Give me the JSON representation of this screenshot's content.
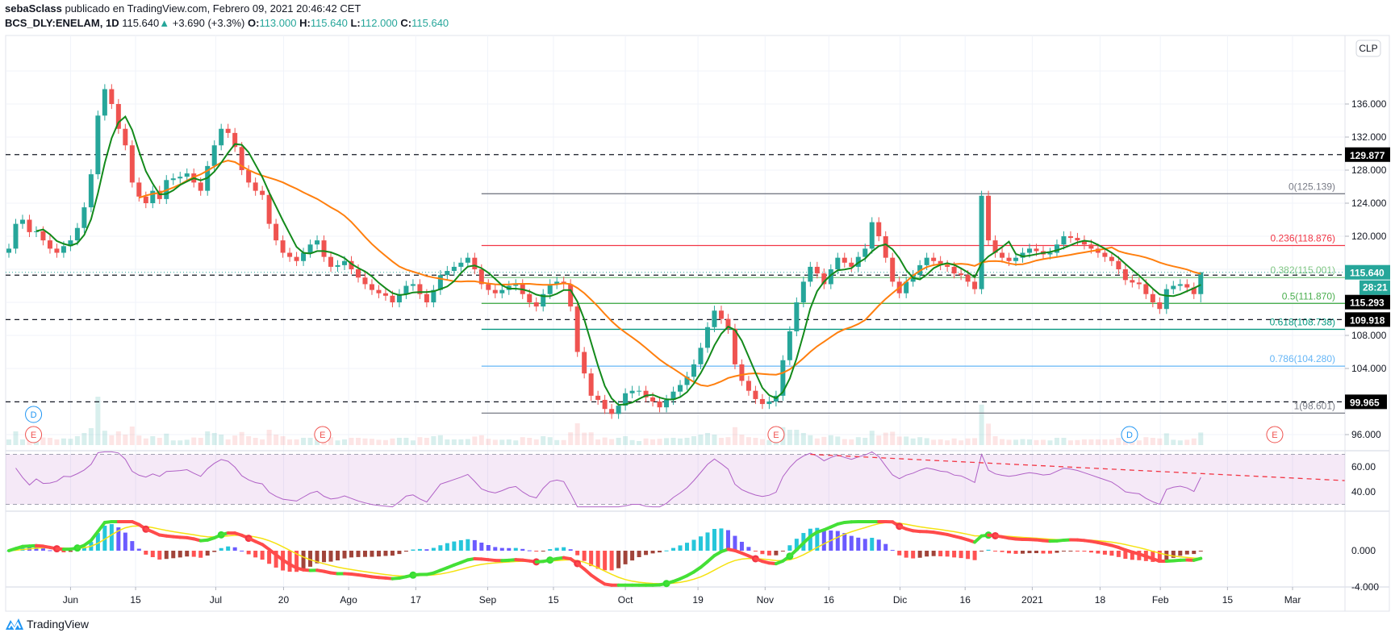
{
  "header": {
    "author": "sebaSclass",
    "published": "publicado en TradingView.com, Febrero 09, 2021 20:46:42 CET",
    "symbol": "BCS_DLY:ENELAM, 1D",
    "last": "115.640",
    "change": "+3.690 (+3.3%)",
    "o_label": "O:",
    "o": "113.000",
    "h_label": "H:",
    "h": "115.640",
    "l_label": "L:",
    "l": "112.000",
    "c_label": "C:",
    "c": "115.640"
  },
  "currency": "CLP",
  "logo_text": "TradingView",
  "colors": {
    "up": "#26a69a",
    "down": "#ef5350",
    "sma_fast": "#138a1b",
    "sma_slow": "#ff7f0e",
    "rsi": "#b061c6"
  },
  "chart_data": {
    "type": "candlestick",
    "title": "BCS_DLY:ENELAM, 1D",
    "ylim": [
      94,
      140
    ],
    "price_ticks": [
      "136.000",
      "132.000",
      "128.000",
      "124.000",
      "120.000",
      "108.000",
      "104.000",
      "96.000"
    ],
    "price_tick_values": [
      136,
      132,
      128,
      124,
      120,
      108,
      104,
      96
    ],
    "time_ticks": [
      {
        "label": "Jun",
        "bar": 9
      },
      {
        "label": "15",
        "bar": 18.5
      },
      {
        "label": "Jul",
        "bar": 30.2
      },
      {
        "label": "20",
        "bar": 40.1
      },
      {
        "label": "Ago",
        "bar": 49.6
      },
      {
        "label": "17",
        "bar": 59.4
      },
      {
        "label": "Sep",
        "bar": 69.9
      },
      {
        "label": "15",
        "bar": 79.5
      },
      {
        "label": "Oct",
        "bar": 90
      },
      {
        "label": "19",
        "bar": 100.6
      },
      {
        "label": "Nov",
        "bar": 110.4
      },
      {
        "label": "16",
        "bar": 119.7
      },
      {
        "label": "Dic",
        "bar": 130.1
      },
      {
        "label": "16",
        "bar": 139.6
      },
      {
        "label": "2021",
        "bar": 149.4
      },
      {
        "label": "18",
        "bar": 159.3
      },
      {
        "label": "Feb",
        "bar": 168.1
      },
      {
        "label": "15",
        "bar": 177.9
      },
      {
        "label": "Mar",
        "bar": 187.4
      }
    ],
    "closes": [
      118.5,
      121.5,
      122,
      120.5,
      120.6,
      119.5,
      118.5,
      118,
      118.8,
      119.5,
      121,
      123.5,
      127.5,
      134.6,
      137.8,
      136,
      133,
      131,
      126.5,
      124.8,
      124,
      125.5,
      124.5,
      126.8,
      127,
      127.2,
      127.6,
      126.5,
      125.5,
      128.5,
      131,
      133,
      132.5,
      130.8,
      128,
      126.5,
      125.5,
      125,
      121.5,
      119.5,
      118,
      117.5,
      117,
      118,
      119,
      119.5,
      117.5,
      116.3,
      116.5,
      117,
      116,
      115,
      114.2,
      113.5,
      113.1,
      112.8,
      112,
      113,
      114,
      114.2,
      113,
      112,
      113.5,
      115.3,
      115.8,
      116.3,
      116.8,
      117.4,
      116,
      114.2,
      113.5,
      113.1,
      113.5,
      114,
      114.2,
      113,
      112,
      111.5,
      113,
      114.2,
      114.5,
      114.2,
      111.5,
      106,
      103.4,
      100.7,
      100.2,
      99.1,
      98.5,
      99.5,
      101,
      101.3,
      101.3,
      100.5,
      100,
      99.3,
      100.2,
      101.2,
      102,
      103,
      104.5,
      106.5,
      109,
      111,
      110,
      108.8,
      104.5,
      102.5,
      101.3,
      100.3,
      99.7,
      100,
      100.7,
      105,
      108.5,
      112,
      114.5,
      116.3,
      115.5,
      114.2,
      116,
      117.4,
      116.8,
      116.3,
      117.5,
      118.5,
      121.7,
      120,
      117.4,
      114.5,
      113.1,
      114.5,
      115.3,
      116.5,
      117.4,
      117,
      116.5,
      116.3,
      115.5,
      115.3,
      114.5,
      113.6,
      124.9,
      119.5,
      118,
      117.4,
      117,
      117.4,
      118,
      118.5,
      118.2,
      117.8,
      118,
      119,
      120,
      119.8,
      119.5,
      119,
      118.5,
      118,
      117.5,
      117,
      116,
      114.7,
      114.4,
      114.2,
      113,
      112,
      111.2,
      113.6,
      114,
      114.2,
      113.8,
      113,
      115.64
    ],
    "last_bar": {
      "open": 113.0,
      "high": 115.64,
      "low": 112.0,
      "close": 115.64
    },
    "horizontal_levels": [
      {
        "value": 129.877,
        "label": "129.877"
      },
      {
        "value": 115.293,
        "label": "115.293"
      },
      {
        "value": 109.918,
        "label": "109.918"
      },
      {
        "value": 99.965,
        "label": "99.965"
      }
    ],
    "current_price": {
      "value": 115.64,
      "label": "115.640",
      "countdown": "28:21"
    },
    "fib_start_bar": 69,
    "fib_levels": [
      {
        "label": "0(125.139)",
        "value": 125.139,
        "color": "#787b86"
      },
      {
        "label": "0.236(118.876)",
        "value": 118.876,
        "color": "#f23645"
      },
      {
        "label": "0.382(115.001)",
        "value": 115.001,
        "color": "#81c784"
      },
      {
        "label": "0.5(111.870)",
        "value": 111.87,
        "color": "#4caf50"
      },
      {
        "label": "0.618(108.738)",
        "value": 108.738,
        "color": "#089981"
      },
      {
        "label": "0.786(104.280)",
        "value": 104.28,
        "color": "#64b5f6"
      },
      {
        "label": "1(98.601)",
        "value": 98.601,
        "color": "#787b86"
      }
    ],
    "events": [
      {
        "type": "D",
        "bar": 3.6,
        "row": 0
      },
      {
        "type": "E",
        "bar": 3.6,
        "row": 1
      },
      {
        "type": "E",
        "bar": 45.8,
        "row": 1
      },
      {
        "type": "E",
        "bar": 112,
        "row": 1
      },
      {
        "type": "D",
        "bar": 163.6,
        "row": 1
      },
      {
        "type": "E",
        "bar": 184.8,
        "row": 1
      }
    ],
    "indicators": {
      "sma_fast_period": 5,
      "sma_slow_period": 20,
      "rsi": {
        "period": 14,
        "upper": 70,
        "lower": 30,
        "ticks": [
          "60.00",
          "40.00"
        ],
        "tick_values": [
          60,
          40
        ],
        "trendline": [
          {
            "bar": 117,
            "value": 70
          },
          {
            "bar": 195,
            "value": 49
          }
        ]
      },
      "macd": {
        "fast": 12,
        "slow": 26,
        "signal": 9,
        "ticks": [
          "0.000",
          "-4.000"
        ],
        "tick_values": [
          0,
          -4
        ]
      }
    }
  }
}
